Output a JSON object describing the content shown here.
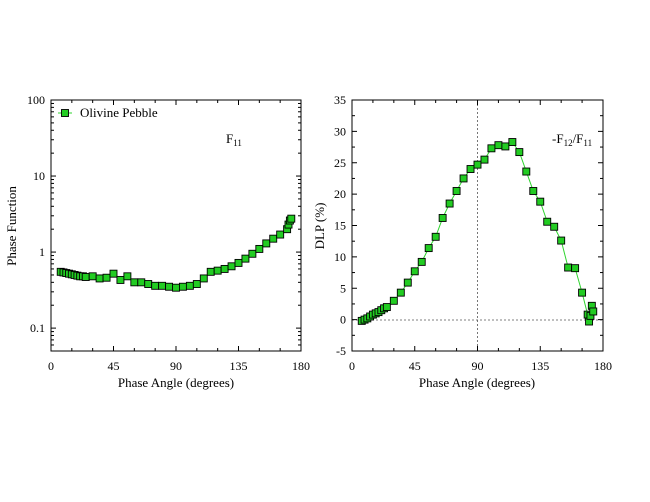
{
  "chart_data": [
    {
      "type": "scatter",
      "xlabel": "Phase Angle (degrees)",
      "ylabel": "Phase Function",
      "annotation": {
        "main": "F",
        "sub": "11"
      },
      "xlim": [
        0,
        180
      ],
      "ylim": [
        0.05,
        100
      ],
      "yscale": "log",
      "xticks": [
        0,
        45,
        90,
        135,
        180
      ],
      "yticks": [
        0.1,
        1,
        10,
        100
      ],
      "ytick_labels": [
        "0.1",
        "1",
        "10",
        "100"
      ],
      "legend": {
        "label": "Olivine Pebble",
        "position": "top-left"
      },
      "series": [
        {
          "name": "Olivine Pebble",
          "color": "#22cc22",
          "marker": "square",
          "x": [
            7,
            9,
            11,
            13,
            15,
            17,
            19,
            21,
            23,
            25,
            30,
            35,
            40,
            45,
            50,
            55,
            60,
            65,
            70,
            75,
            80,
            85,
            90,
            95,
            100,
            105,
            110,
            115,
            120,
            125,
            130,
            135,
            140,
            145,
            150,
            155,
            160,
            165,
            170,
            171,
            172,
            173
          ],
          "y": [
            0.55,
            0.54,
            0.53,
            0.52,
            0.51,
            0.5,
            0.49,
            0.48,
            0.48,
            0.47,
            0.48,
            0.45,
            0.46,
            0.52,
            0.43,
            0.48,
            0.4,
            0.4,
            0.38,
            0.36,
            0.36,
            0.35,
            0.34,
            0.35,
            0.36,
            0.38,
            0.45,
            0.55,
            0.57,
            0.6,
            0.65,
            0.72,
            0.82,
            0.95,
            1.1,
            1.3,
            1.5,
            1.7,
            2.0,
            2.3,
            2.6,
            2.75
          ]
        }
      ]
    },
    {
      "type": "line",
      "xlabel": "Phase Angle (degrees)",
      "ylabel": "DLP (%)",
      "annotation": {
        "main": "-F",
        "sub1": "12",
        "mid": "/F",
        "sub2": "11"
      },
      "xlim": [
        0,
        180
      ],
      "ylim": [
        -5,
        35
      ],
      "xticks": [
        0,
        45,
        90,
        135,
        180
      ],
      "yticks": [
        -5,
        0,
        5,
        10,
        15,
        20,
        25,
        30,
        35
      ],
      "reference_lines": {
        "horizontal_at": 0,
        "vertical_at": 90,
        "style": "dashed"
      },
      "series": [
        {
          "color": "#22cc22",
          "marker": "square",
          "x": [
            7,
            9,
            11,
            13,
            15,
            17,
            19,
            21,
            23,
            25,
            30,
            35,
            40,
            45,
            50,
            55,
            60,
            65,
            70,
            75,
            80,
            85,
            90,
            95,
            100,
            105,
            110,
            115,
            120,
            125,
            130,
            135,
            140,
            145,
            150,
            155,
            160,
            165,
            169,
            170,
            171,
            172,
            173
          ],
          "y": [
            -0.2,
            0.0,
            0.2,
            0.5,
            0.8,
            1.0,
            1.2,
            1.5,
            1.8,
            2.0,
            3.0,
            4.3,
            5.9,
            7.7,
            9.2,
            11.4,
            13.2,
            16.2,
            18.5,
            20.5,
            22.5,
            24.0,
            24.7,
            25.5,
            27.3,
            27.8,
            27.6,
            28.3,
            26.7,
            23.6,
            20.5,
            18.8,
            15.6,
            14.8,
            12.6,
            8.3,
            8.2,
            4.3,
            0.8,
            -0.3,
            0.6,
            2.2,
            1.3
          ]
        }
      ]
    }
  ]
}
